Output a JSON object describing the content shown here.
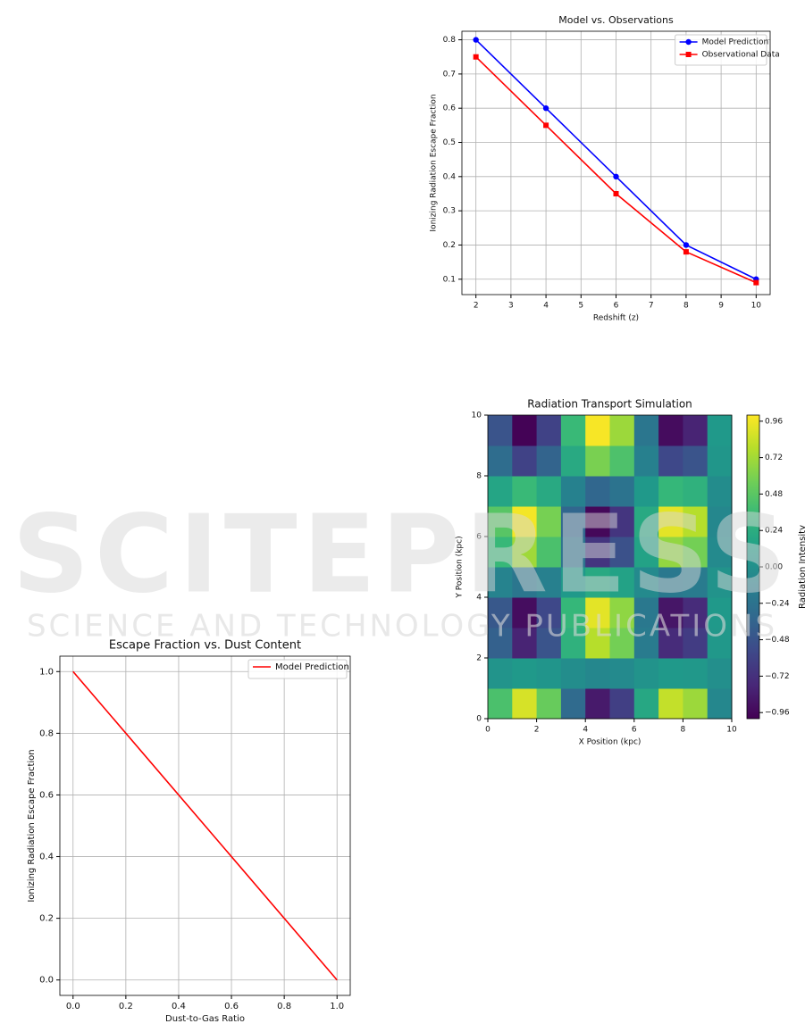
{
  "watermark": {
    "title": "SCITEPRESS",
    "subtitle": "SCIENCE AND TECHNOLOGY PUBLICATIONS"
  },
  "chart_data": [
    {
      "type": "line",
      "title": "Model vs. Observations",
      "xlabel": "Redshift (z)",
      "ylabel": "Ionizing Radiation Escape Fraction",
      "x": [
        2,
        4,
        6,
        8,
        10
      ],
      "series": [
        {
          "name": "Model Prediction",
          "color": "#0000ff",
          "marker": "circle",
          "values": [
            0.8,
            0.6,
            0.4,
            0.2,
            0.1
          ]
        },
        {
          "name": "Observational Data",
          "color": "#ff0000",
          "marker": "square",
          "values": [
            0.75,
            0.55,
            0.35,
            0.18,
            0.09
          ]
        }
      ],
      "xlim": [
        1.6,
        10.4
      ],
      "ylim": [
        0.055,
        0.825
      ],
      "xticks": [
        2,
        3,
        4,
        5,
        6,
        7,
        8,
        9,
        10
      ],
      "yticks": [
        0.1,
        0.2,
        0.3,
        0.4,
        0.5,
        0.6,
        0.7,
        0.8
      ],
      "grid": true,
      "legend": "upper right"
    },
    {
      "type": "heatmap",
      "title": "Radiation Transport Simulation",
      "xlabel": "X Position (kpc)",
      "ylabel": "Y Position (kpc)",
      "x": [
        0.5,
        1.5,
        2.5,
        3.5,
        4.5,
        5.5,
        6.5,
        7.5,
        8.5,
        9.5
      ],
      "y": [
        0.5,
        1.5,
        2.5,
        3.5,
        4.5,
        5.5,
        6.5,
        7.5,
        8.5,
        9.5
      ],
      "z": [
        [
          0.42,
          0.88,
          0.53,
          -0.31,
          -0.86,
          -0.62,
          0.19,
          0.82,
          0.7,
          -0.07
        ],
        [
          0.03,
          0.07,
          0.04,
          -0.02,
          -0.07,
          -0.05,
          0.02,
          0.07,
          0.06,
          -0.01
        ],
        [
          -0.38,
          -0.8,
          -0.48,
          0.28,
          0.78,
          0.57,
          -0.17,
          -0.75,
          -0.64,
          0.06
        ],
        [
          -0.45,
          -0.93,
          -0.56,
          0.33,
          0.92,
          0.66,
          -0.2,
          -0.88,
          -0.75,
          0.07
        ],
        [
          -0.1,
          -0.21,
          -0.13,
          0.07,
          0.21,
          0.15,
          -0.05,
          -0.2,
          -0.17,
          0.02
        ],
        [
          0.34,
          0.71,
          0.42,
          -0.25,
          -0.69,
          -0.5,
          0.15,
          0.67,
          0.57,
          -0.05
        ],
        [
          0.47,
          0.97,
          0.58,
          -0.34,
          -0.96,
          -0.69,
          0.21,
          0.92,
          0.78,
          -0.07
        ],
        [
          0.17,
          0.35,
          0.21,
          -0.12,
          -0.34,
          -0.24,
          0.07,
          0.33,
          0.28,
          -0.03
        ],
        [
          -0.29,
          -0.6,
          -0.36,
          0.21,
          0.59,
          0.43,
          -0.13,
          -0.56,
          -0.48,
          0.05
        ],
        [
          -0.48,
          -0.99,
          -0.6,
          0.35,
          0.98,
          0.7,
          -0.21,
          -0.94,
          -0.8,
          0.07
        ]
      ],
      "colormap": "viridis",
      "xlim": [
        0,
        10
      ],
      "ylim": [
        0,
        10
      ],
      "xticks": [
        0,
        2,
        4,
        6,
        8,
        10
      ],
      "yticks": [
        0,
        2,
        4,
        6,
        8,
        10
      ],
      "colorbar": {
        "label": "Radiation Intensity",
        "clim": [
          -1,
          1
        ],
        "ticks": [
          0.96,
          0.72,
          0.48,
          0.24,
          {
            "value": 0,
            "label": "0.00"
          },
          {
            "value": -0.24,
            "label": "−0.24"
          },
          {
            "value": -0.48,
            "label": "−0.48"
          },
          {
            "value": -0.72,
            "label": "−0.72"
          },
          {
            "value": -0.96,
            "label": "−0.96"
          }
        ]
      }
    },
    {
      "type": "line",
      "title": "Escape Fraction vs. Dust Content",
      "xlabel": "Dust-to-Gas Ratio",
      "ylabel": "Ionizing Radiation Escape Fraction",
      "x": [
        0,
        1
      ],
      "series": [
        {
          "name": "Model Prediction",
          "color": "#ff0000",
          "values": [
            1,
            0
          ]
        }
      ],
      "xlim": [
        -0.05,
        1.05
      ],
      "ylim": [
        -0.05,
        1.05
      ],
      "xticks": [
        {
          "value": 0,
          "label": "0.0"
        },
        0.2,
        0.4,
        0.6,
        0.8,
        {
          "value": 1,
          "label": "1.0"
        }
      ],
      "yticks": [
        {
          "value": 0,
          "label": "0.0"
        },
        0.2,
        0.4,
        0.6,
        0.8,
        {
          "value": 1,
          "label": "1.0"
        }
      ],
      "grid": true,
      "legend": "upper right"
    }
  ]
}
